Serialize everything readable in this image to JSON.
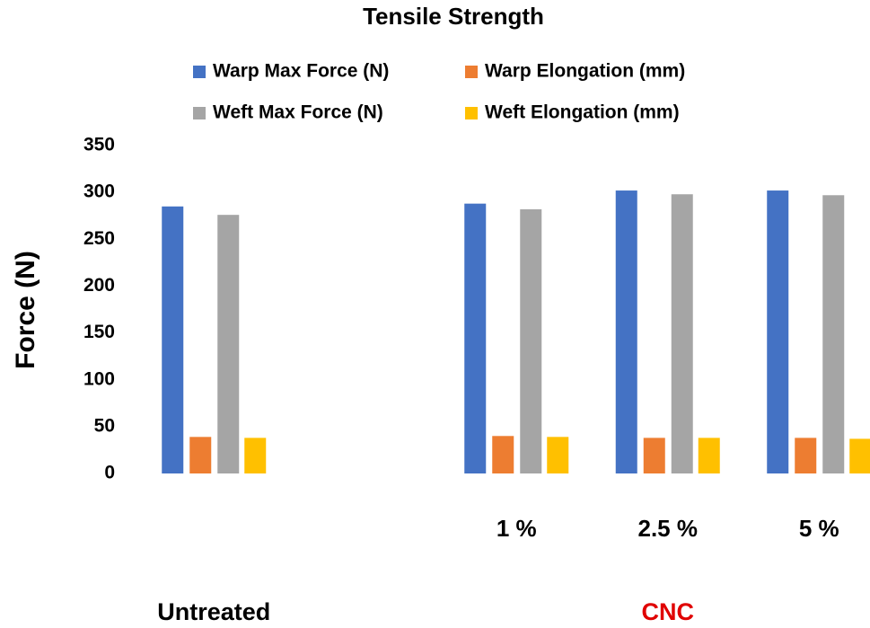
{
  "chart_data": {
    "type": "bar",
    "title": "Tensile Strength",
    "y_label": "Force (N)",
    "categories": [
      null,
      null,
      "1 %",
      "2.5 %",
      "5 %"
    ],
    "group_labels": [
      {
        "text": "Untreated",
        "color": "#000000"
      },
      {
        "text": "CNC",
        "color": "#e00000"
      }
    ],
    "series": [
      {
        "name": "Warp Max Force (N)",
        "color": "#4472c4",
        "values": [
          285,
          null,
          288,
          302,
          302
        ]
      },
      {
        "name": "Warp Elongation (mm)",
        "color": "#ed7d31",
        "values": [
          39,
          null,
          40,
          38,
          38
        ]
      },
      {
        "name": "Weft Max Force (N)",
        "color": "#a5a5a5",
        "values": [
          276,
          null,
          282,
          298,
          297
        ]
      },
      {
        "name": "Weft Elongation (mm)",
        "color": "#ffc000",
        "values": [
          38,
          null,
          39,
          38,
          37
        ]
      }
    ],
    "ylim": [
      0,
      350
    ],
    "yticks": [
      0,
      50,
      100,
      150,
      200,
      250,
      300,
      350
    ],
    "grid": false
  }
}
